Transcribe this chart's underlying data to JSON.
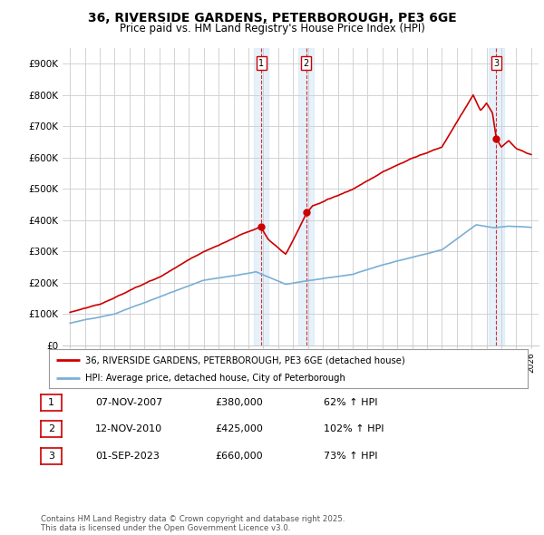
{
  "title": "36, RIVERSIDE GARDENS, PETERBOROUGH, PE3 6GE",
  "subtitle": "Price paid vs. HM Land Registry's House Price Index (HPI)",
  "background_color": "#ffffff",
  "plot_bg_color": "#ffffff",
  "grid_color": "#cccccc",
  "hpi_color": "#7bafd4",
  "price_color": "#cc0000",
  "ylim": [
    0,
    950000
  ],
  "yticks": [
    0,
    100000,
    200000,
    300000,
    400000,
    500000,
    600000,
    700000,
    800000,
    900000
  ],
  "ytick_labels": [
    "£0",
    "£100K",
    "£200K",
    "£300K",
    "£400K",
    "£500K",
    "£600K",
    "£700K",
    "£800K",
    "£900K"
  ],
  "purchase_year_nums": [
    2007.853,
    2010.869,
    2023.664
  ],
  "purchase_prices": [
    380000,
    425000,
    660000
  ],
  "purchase_labels": [
    "1",
    "2",
    "3"
  ],
  "legend_line1": "36, RIVERSIDE GARDENS, PETERBOROUGH, PE3 6GE (detached house)",
  "legend_line2": "HPI: Average price, detached house, City of Peterborough",
  "table_rows": [
    [
      "1",
      "07-NOV-2007",
      "£380,000",
      "62% ↑ HPI"
    ],
    [
      "2",
      "12-NOV-2010",
      "£425,000",
      "102% ↑ HPI"
    ],
    [
      "3",
      "01-SEP-2023",
      "£660,000",
      "73% ↑ HPI"
    ]
  ],
  "footer": "Contains HM Land Registry data © Crown copyright and database right 2025.\nThis data is licensed under the Open Government Licence v3.0.",
  "xlim_start": 1994.5,
  "xlim_end": 2026.5,
  "span_color": "#d6e8f7",
  "span_alpha": 0.6
}
